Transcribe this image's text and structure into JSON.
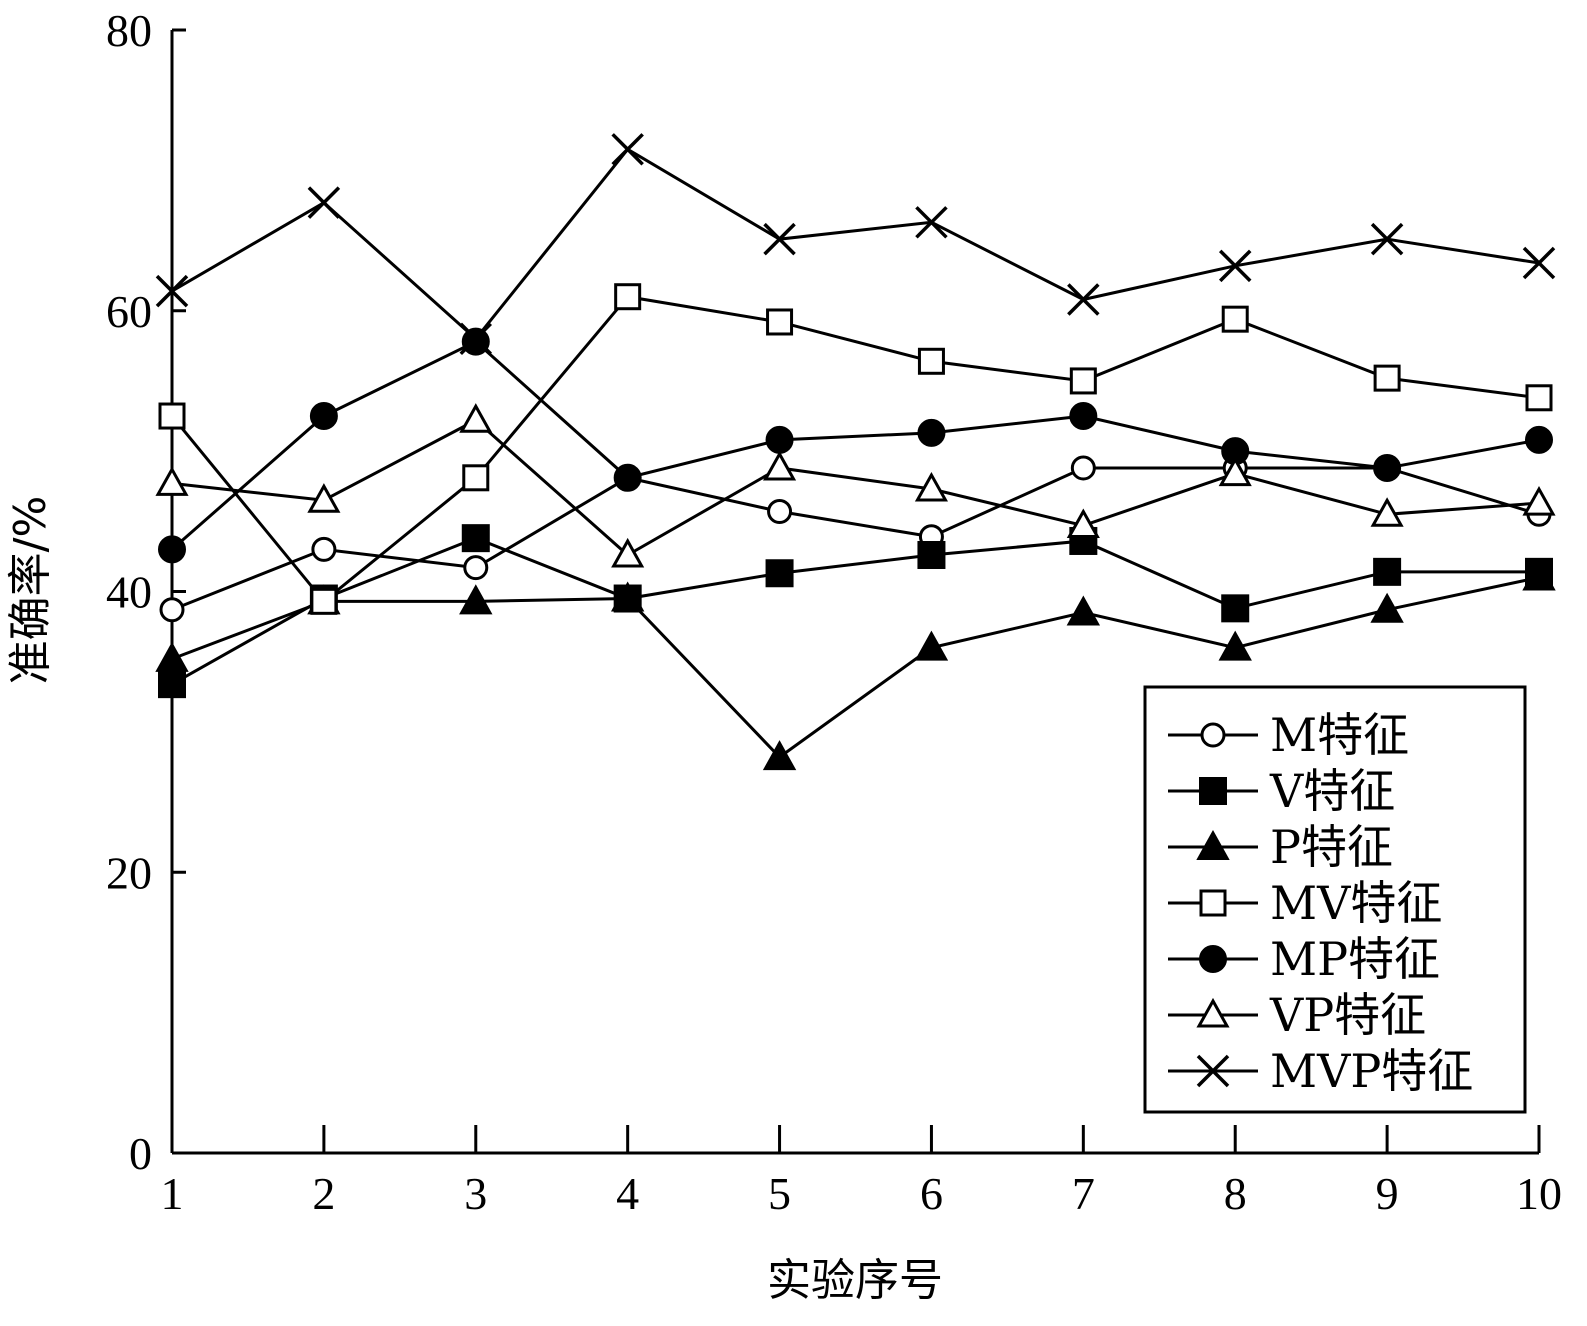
{
  "chart_data": {
    "type": "line",
    "title": "",
    "xlabel": "实验序号",
    "ylabel": "准确率/%",
    "x": [
      1,
      2,
      3,
      4,
      5,
      6,
      7,
      8,
      9,
      10
    ],
    "xlim": [
      1,
      10
    ],
    "ylim": [
      0,
      80
    ],
    "yticks": [
      0,
      20,
      40,
      60,
      80
    ],
    "xticks": [
      1,
      2,
      3,
      4,
      5,
      6,
      7,
      8,
      9,
      10
    ],
    "grid": false,
    "legend_position": "bottom-right",
    "series": [
      {
        "name": "M特征",
        "marker": "circle-open",
        "values": [
          38.7,
          43.0,
          41.7,
          48.1,
          45.7,
          43.9,
          48.8,
          48.8,
          48.8,
          45.5
        ]
      },
      {
        "name": "V特征",
        "marker": "square-filled",
        "values": [
          33.4,
          39.5,
          43.8,
          39.5,
          41.3,
          42.6,
          43.6,
          38.8,
          41.4,
          41.4
        ]
      },
      {
        "name": "P特征",
        "marker": "triangle-filled",
        "values": [
          35.2,
          39.3,
          39.3,
          39.5,
          28.2,
          36.0,
          38.5,
          36.0,
          38.7,
          41.0
        ]
      },
      {
        "name": "MV特征",
        "marker": "square-open",
        "values": [
          52.5,
          39.3,
          48.1,
          61.0,
          59.2,
          56.4,
          55.0,
          59.4,
          55.2,
          53.8
        ]
      },
      {
        "name": "MP特征",
        "marker": "circle-filled",
        "values": [
          43.0,
          52.5,
          57.8,
          48.1,
          50.8,
          51.3,
          52.5,
          50.0,
          48.8,
          50.8
        ]
      },
      {
        "name": "VP特征",
        "marker": "triangle-open",
        "values": [
          47.7,
          46.5,
          52.2,
          42.6,
          48.8,
          47.3,
          44.7,
          48.4,
          45.5,
          46.3
        ]
      },
      {
        "name": "MVP特征",
        "marker": "x",
        "values": [
          61.4,
          67.7,
          58.0,
          71.5,
          65.1,
          66.3,
          60.8,
          63.2,
          65.1,
          63.4
        ]
      }
    ]
  }
}
